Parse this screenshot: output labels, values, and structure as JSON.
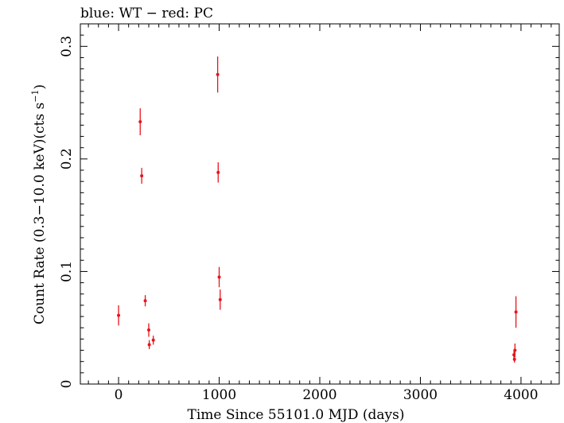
{
  "chart_data": {
    "type": "scatter",
    "title": "blue: WT − red: PC",
    "xlabel": "Time Since 55101.0 MJD (days)",
    "ylabel_main": "Count Rate (0.3−10.0 keV)(cts s",
    "ylabel_sup": "−1",
    "ylabel_close": ")",
    "xlim": [
      -380,
      4380
    ],
    "ylim": [
      0,
      0.32
    ],
    "xticks": [
      0,
      1000,
      2000,
      3000,
      4000
    ],
    "xtick_labels": [
      "0",
      "1000",
      "2000",
      "3000",
      "4000"
    ],
    "yticks": [
      0,
      0.1,
      0.2,
      0.3
    ],
    "ytick_labels": [
      "0",
      "0.1",
      "0.2",
      "0.3"
    ],
    "grid": false,
    "colors": {
      "PC": "#e8141c",
      "axis": "#000000"
    },
    "series": [
      {
        "name": "PC",
        "color": "#e8141c",
        "points": [
          {
            "x": 0,
            "y": 0.061,
            "err": 0.009
          },
          {
            "x": 215,
            "y": 0.233,
            "err": 0.012
          },
          {
            "x": 230,
            "y": 0.185,
            "err": 0.007
          },
          {
            "x": 265,
            "y": 0.074,
            "err": 0.005
          },
          {
            "x": 300,
            "y": 0.048,
            "err": 0.006
          },
          {
            "x": 305,
            "y": 0.035,
            "err": 0.004
          },
          {
            "x": 345,
            "y": 0.039,
            "err": 0.004
          },
          {
            "x": 985,
            "y": 0.275,
            "err": 0.016
          },
          {
            "x": 990,
            "y": 0.188,
            "err": 0.009
          },
          {
            "x": 1000,
            "y": 0.095,
            "err": 0.009
          },
          {
            "x": 1010,
            "y": 0.075,
            "err": 0.009
          },
          {
            "x": 3930,
            "y": 0.026,
            "err": 0.004
          },
          {
            "x": 3935,
            "y": 0.022,
            "err": 0.003
          },
          {
            "x": 3940,
            "y": 0.03,
            "err": 0.006
          },
          {
            "x": 3950,
            "y": 0.064,
            "err": 0.014
          }
        ]
      }
    ]
  }
}
